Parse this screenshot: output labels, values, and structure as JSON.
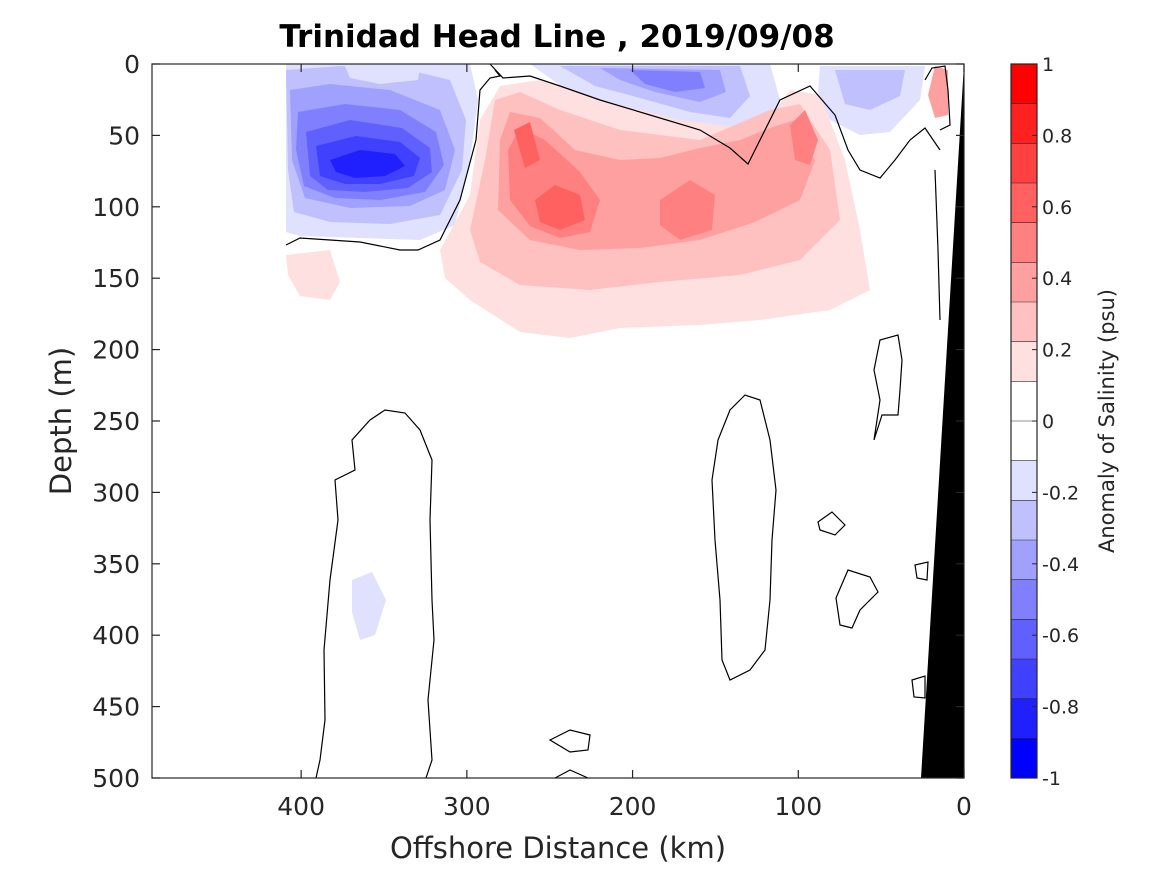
{
  "chart_data": {
    "type": "heatmap",
    "subtype": "filled contour section",
    "title": "Trinidad Head Line , 2019/09/08",
    "xlabel": "Offshore Distance (km)",
    "ylabel": "Depth (m)",
    "x_reversed": true,
    "y_reversed": true,
    "xlim": [
      490,
      0
    ],
    "ylim": [
      0,
      500
    ],
    "x_ticks": [
      400,
      300,
      200,
      100,
      0
    ],
    "y_ticks": [
      0,
      50,
      100,
      150,
      200,
      250,
      300,
      350,
      400,
      450,
      500
    ],
    "grid": false,
    "colorbar": {
      "label": "Anomaly of Salinity (psu)",
      "limits": [
        -1,
        1
      ],
      "ticks": [
        1,
        0.8,
        0.6,
        0.4,
        0.2,
        0,
        -0.2,
        -0.4,
        -0.6,
        -0.8,
        -1
      ],
      "levels_top_to_bottom": [
        "#ff0000",
        "#ff2020",
        "#ff4040",
        "#ff6060",
        "#ff8080",
        "#ffa0a0",
        "#ffc0c0",
        "#ffe0e0",
        "#ffffff",
        "#ffffff",
        "#e0e0ff",
        "#c0c0ff",
        "#a0a0ff",
        "#8080ff",
        "#6060ff",
        "#4040ff",
        "#2020ff",
        "#0000ff"
      ]
    },
    "features": [
      {
        "name": "fresh core offshore",
        "distance_km": 365,
        "depth_m": 70,
        "value_psu": -0.7
      },
      {
        "name": "salty core",
        "distance_km": 250,
        "depth_m": 95,
        "value_psu": 0.6
      },
      {
        "name": "salty core",
        "distance_km": 165,
        "depth_m": 95,
        "value_psu": 0.4
      },
      {
        "name": "salty core",
        "distance_km": 100,
        "depth_m": 60,
        "value_psu": 0.4
      },
      {
        "name": "fresh patch",
        "distance_km": 190,
        "depth_m": 10,
        "value_psu": -0.4
      },
      {
        "name": "fresh patch",
        "distance_km": 360,
        "depth_m": 380,
        "value_psu": -0.1
      }
    ],
    "bottom_topography": {
      "color": "#000000",
      "shelf_depth_m": [
        [
          0,
          0
        ],
        [
          25,
          500
        ]
      ]
    },
    "data_extent_km": [
      0,
      410
    ]
  },
  "colors": {
    "background": "#ffffff",
    "axis": "#262626",
    "positive_max": "#ff0000",
    "negative_max": "#0000ff",
    "contour_line": "#000000",
    "bathymetry": "#000000"
  }
}
